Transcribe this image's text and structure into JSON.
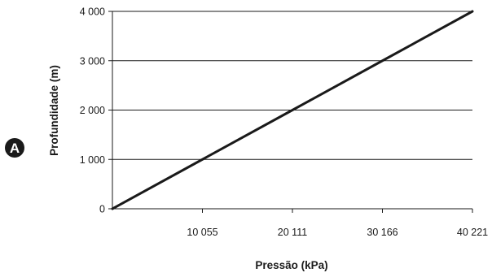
{
  "chart_data": {
    "type": "line",
    "badge": "A",
    "xlabel": "Pressão (kPa)",
    "ylabel": "Profundidade (m)",
    "x_ticks": [
      {
        "value": 10055,
        "label": "10 055"
      },
      {
        "value": 20111,
        "label": "20 111"
      },
      {
        "value": 30166,
        "label": "30 166"
      },
      {
        "value": 40221,
        "label": "40 221"
      }
    ],
    "y_ticks": [
      {
        "value": 0,
        "label": "0"
      },
      {
        "value": 1000,
        "label": "1 000"
      },
      {
        "value": 2000,
        "label": "2 000"
      },
      {
        "value": 3000,
        "label": "3 000"
      },
      {
        "value": 4000,
        "label": "4 000"
      }
    ],
    "xlim": [
      0,
      40221
    ],
    "ylim": [
      0,
      4000
    ],
    "grid": "horizontal",
    "series": [
      {
        "x": [
          0,
          10055,
          20111,
          30166,
          40221
        ],
        "y": [
          0,
          1000,
          2000,
          3000,
          4000
        ]
      }
    ],
    "colors": {
      "line": "#1a1a1a",
      "grid": "#1a1a1a",
      "badge": "#1a1a1a"
    }
  }
}
